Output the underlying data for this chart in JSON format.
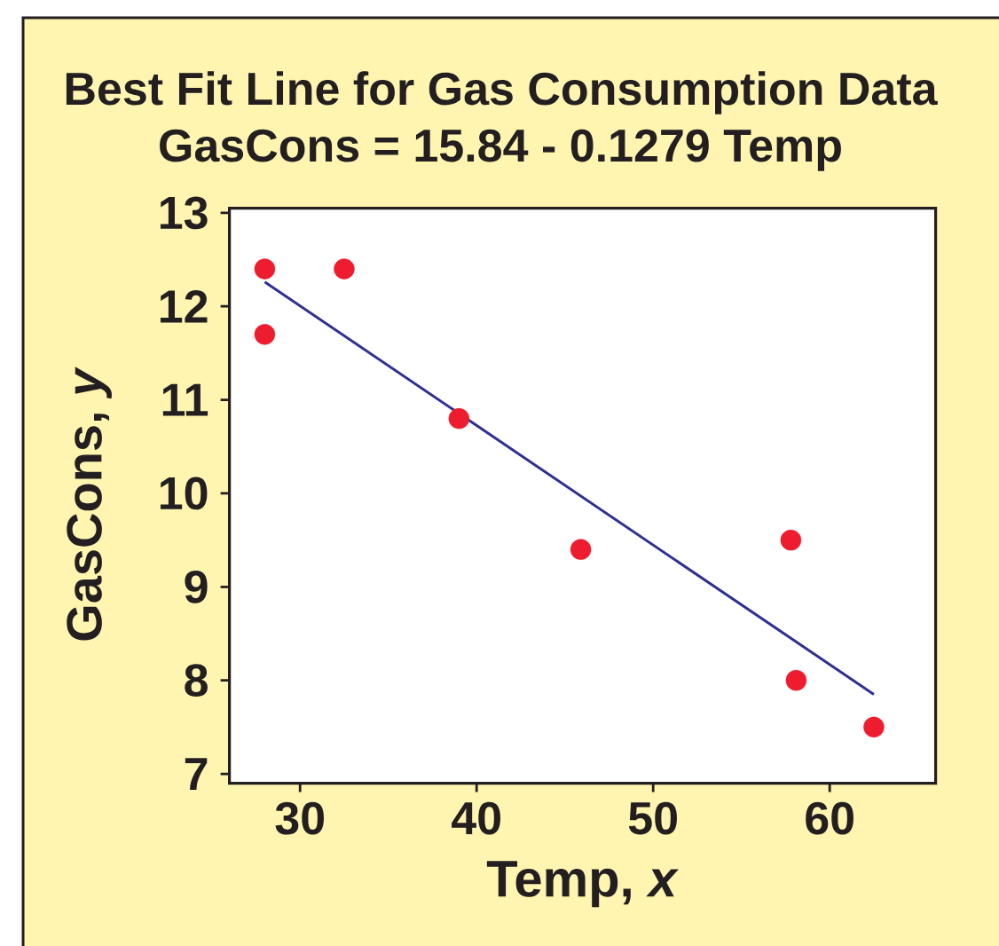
{
  "chart_data": {
    "type": "scatter",
    "title": "Best Fit Line for Gas Consumption Data",
    "subtitle": "GasCons = 15.84 - 0.1279 Temp",
    "xlabel": "Temp, *x*",
    "ylabel": "GasCons, *y*",
    "xlim": [
      26,
      66
    ],
    "ylim": [
      6.9,
      13.05
    ],
    "xticks": [
      30,
      40,
      50,
      60
    ],
    "yticks": [
      7,
      8,
      9,
      10,
      11,
      12,
      13
    ],
    "series": [
      {
        "type": "scatter",
        "color": "#ed1c2e",
        "marker": "circle",
        "x": [
          28.0,
          28.0,
          32.5,
          39.0,
          45.9,
          57.8,
          58.1,
          62.5
        ],
        "values": [
          12.4,
          11.7,
          12.4,
          10.8,
          9.4,
          9.5,
          8.0,
          7.5
        ]
      },
      {
        "type": "line",
        "color": "#2e3192",
        "marker": "none",
        "line_style": "solid",
        "x": [
          28,
          62.5
        ],
        "values": [
          12.26,
          7.85
        ]
      }
    ]
  }
}
